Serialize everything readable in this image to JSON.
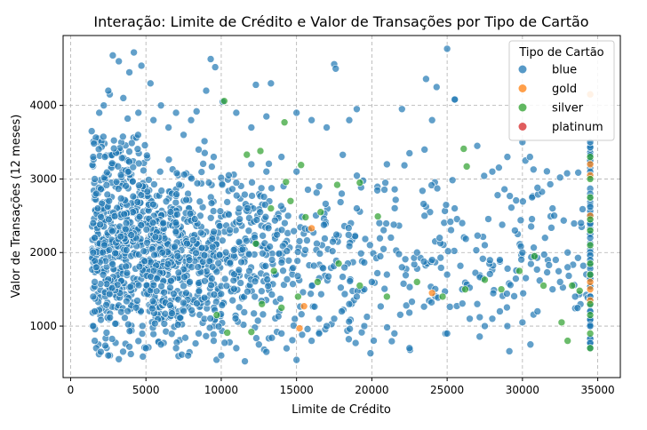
{
  "chart_data": {
    "type": "scatter",
    "title": "Interação: Limite de Crédito e Valor de Transações por Tipo de Cartão",
    "xlabel": "Limite de Crédito",
    "ylabel": "Valor de Transações (12 meses)",
    "xlim": [
      -500,
      36500
    ],
    "ylim": [
      300,
      4950
    ],
    "xticks": [
      0,
      5000,
      10000,
      15000,
      20000,
      25000,
      30000,
      35000
    ],
    "yticks": [
      1000,
      2000,
      3000,
      4000
    ],
    "grid": true,
    "legend": {
      "title": "Tipo de Cartão",
      "placement": "top-right",
      "entries": [
        "blue",
        "gold",
        "silver",
        "platinum"
      ]
    },
    "colors": {
      "blue": "#1f77b4",
      "gold": "#ff7f0e",
      "silver": "#2ca02c",
      "platinum": "#d62728"
    },
    "series": [
      {
        "name": "blue",
        "points": [
          [
            2800,
            4680
          ],
          [
            3200,
            4600
          ],
          [
            4200,
            4720
          ],
          [
            4700,
            4540
          ],
          [
            9300,
            4630
          ],
          [
            9600,
            4520
          ],
          [
            17500,
            4560
          ],
          [
            17600,
            4500
          ],
          [
            25000,
            4770
          ],
          [
            23600,
            4360
          ],
          [
            24300,
            4250
          ],
          [
            10100,
            4050
          ],
          [
            12300,
            4280
          ],
          [
            13300,
            4300
          ],
          [
            3900,
            4450
          ],
          [
            2200,
            4000
          ],
          [
            2600,
            4150
          ],
          [
            1900,
            3900
          ],
          [
            5300,
            4300
          ],
          [
            6000,
            4000
          ],
          [
            7000,
            3900
          ],
          [
            8000,
            3800
          ],
          [
            9000,
            4200
          ],
          [
            11000,
            3900
          ],
          [
            12000,
            3700
          ],
          [
            13000,
            3850
          ],
          [
            15000,
            3900
          ],
          [
            16000,
            3800
          ],
          [
            17000,
            3700
          ],
          [
            19000,
            3950
          ],
          [
            22000,
            3950
          ],
          [
            24000,
            3800
          ],
          [
            25500,
            4080
          ],
          [
            18500,
            3800
          ],
          [
            21000,
            3200
          ],
          [
            22500,
            3350
          ],
          [
            23500,
            3400
          ],
          [
            27000,
            3450
          ],
          [
            28000,
            3100
          ],
          [
            29000,
            3300
          ],
          [
            30000,
            3500
          ],
          [
            30200,
            3250
          ],
          [
            30500,
            3300
          ],
          [
            31000,
            2880
          ],
          [
            32000,
            2600
          ],
          [
            32500,
            3020
          ],
          [
            31500,
            2200
          ],
          [
            33000,
            2000
          ],
          [
            34500,
            2200
          ],
          [
            34500,
            2500
          ],
          [
            34500,
            2800
          ],
          [
            34500,
            3100
          ],
          [
            34500,
            3500
          ],
          [
            34500,
            1200
          ],
          [
            34500,
            1400
          ],
          [
            34500,
            1700
          ],
          [
            34500,
            1900
          ],
          [
            34500,
            1000
          ],
          [
            30000,
            1050
          ],
          [
            31000,
            1200
          ],
          [
            32000,
            1500
          ],
          [
            29000,
            1000
          ],
          [
            28000,
            1100
          ],
          [
            27000,
            1300
          ],
          [
            26000,
            1500
          ],
          [
            25000,
            1700
          ],
          [
            24000,
            1900
          ],
          [
            23000,
            2000
          ],
          [
            22000,
            1800
          ],
          [
            21000,
            1700
          ],
          [
            20000,
            1600
          ],
          [
            19500,
            1500
          ],
          [
            19000,
            1400
          ],
          [
            18500,
            1300
          ],
          [
            18000,
            1200
          ],
          [
            17500,
            1100
          ],
          [
            17000,
            1000
          ],
          [
            16500,
            900
          ],
          [
            16000,
            800
          ],
          [
            15000,
            540
          ],
          [
            13000,
            650
          ],
          [
            10000,
            600
          ],
          [
            7800,
            600
          ],
          [
            8500,
            900
          ],
          [
            1400,
            3650
          ],
          [
            1500,
            3300
          ],
          [
            1600,
            3000
          ],
          [
            1700,
            2800
          ],
          [
            1800,
            2600
          ],
          [
            1500,
            2400
          ],
          [
            1600,
            2200
          ],
          [
            1500,
            2000
          ],
          [
            1700,
            1800
          ],
          [
            1600,
            1600
          ],
          [
            1500,
            1400
          ],
          [
            1600,
            1200
          ],
          [
            1500,
            1000
          ],
          [
            1600,
            800
          ],
          [
            1700,
            700
          ],
          [
            2000,
            650
          ],
          [
            2500,
            600
          ],
          [
            3200,
            550
          ],
          [
            4000,
            620
          ],
          [
            5000,
            700
          ],
          [
            6000,
            750
          ],
          [
            7000,
            700
          ],
          [
            9500,
            800
          ],
          [
            11000,
            700
          ],
          [
            12500,
            750
          ],
          [
            14000,
            900
          ],
          [
            16500,
            1100
          ],
          [
            19500,
            1000
          ],
          [
            21500,
            900
          ],
          [
            22500,
            700
          ],
          [
            25000,
            900
          ],
          [
            26500,
            1100
          ],
          [
            27500,
            1000
          ],
          [
            28500,
            1200
          ],
          [
            33500,
            1400
          ],
          [
            33000,
            1800
          ],
          [
            32500,
            1600
          ],
          [
            30000,
            2000
          ],
          [
            29500,
            2300
          ],
          [
            28500,
            1900
          ],
          [
            27500,
            2100
          ],
          [
            26000,
            2400
          ],
          [
            25500,
            2600
          ],
          [
            24500,
            2200
          ],
          [
            23500,
            2500
          ],
          [
            20500,
            2400
          ],
          [
            19000,
            2600
          ],
          [
            18000,
            2800
          ],
          [
            16500,
            2900
          ],
          [
            15000,
            3100
          ],
          [
            14000,
            3300
          ],
          [
            13000,
            3100
          ],
          [
            12000,
            3200
          ],
          [
            11000,
            2950
          ],
          [
            10500,
            3050
          ],
          [
            9500,
            3300
          ],
          [
            8500,
            3400
          ],
          [
            7500,
            3600
          ],
          [
            6500,
            3700
          ],
          [
            5500,
            3800
          ],
          [
            4500,
            3900
          ],
          [
            3500,
            4100
          ],
          [
            2500,
            4200
          ]
        ]
      },
      {
        "name": "gold",
        "points": [
          [
            34500,
            4150
          ],
          [
            34500,
            3200
          ],
          [
            34500,
            3050
          ],
          [
            34500,
            2500
          ],
          [
            34500,
            1600
          ],
          [
            34500,
            1500
          ],
          [
            34500,
            1350
          ],
          [
            16000,
            2330
          ],
          [
            15500,
            1270
          ],
          [
            15200,
            970
          ],
          [
            24000,
            1450
          ]
        ]
      },
      {
        "name": "silver",
        "points": [
          [
            10200,
            4060
          ],
          [
            14200,
            3770
          ],
          [
            11700,
            3330
          ],
          [
            12600,
            3380
          ],
          [
            15300,
            3190
          ],
          [
            14300,
            2960
          ],
          [
            17700,
            2920
          ],
          [
            19200,
            2950
          ],
          [
            20400,
            2490
          ],
          [
            26100,
            3410
          ],
          [
            26300,
            3170
          ],
          [
            34500,
            3300
          ],
          [
            34500,
            3000
          ],
          [
            34500,
            2750
          ],
          [
            34500,
            2450
          ],
          [
            34500,
            2300
          ],
          [
            34500,
            2100
          ],
          [
            34500,
            1850
          ],
          [
            34500,
            1700
          ],
          [
            34500,
            1300
          ],
          [
            34500,
            1150
          ],
          [
            34500,
            900
          ],
          [
            34500,
            700
          ],
          [
            33300,
            1550
          ],
          [
            33800,
            1480
          ],
          [
            33000,
            800
          ],
          [
            32600,
            1050
          ],
          [
            31400,
            1550
          ],
          [
            30800,
            1950
          ],
          [
            29800,
            1750
          ],
          [
            28600,
            1500
          ],
          [
            27500,
            1630
          ],
          [
            26200,
            1500
          ],
          [
            24700,
            1400
          ],
          [
            23000,
            1600
          ],
          [
            21000,
            1400
          ],
          [
            19200,
            1550
          ],
          [
            17800,
            1850
          ],
          [
            16400,
            1600
          ],
          [
            15100,
            1400
          ],
          [
            14000,
            1250
          ],
          [
            12700,
            1300
          ],
          [
            12300,
            2120
          ],
          [
            13300,
            2600
          ],
          [
            14600,
            2700
          ],
          [
            15600,
            2480
          ],
          [
            16600,
            2550
          ],
          [
            10400,
            910
          ],
          [
            9700,
            1150
          ],
          [
            12000,
            920
          ],
          [
            13500,
            1750
          ]
        ]
      },
      {
        "name": "platinum",
        "points": []
      }
    ]
  }
}
